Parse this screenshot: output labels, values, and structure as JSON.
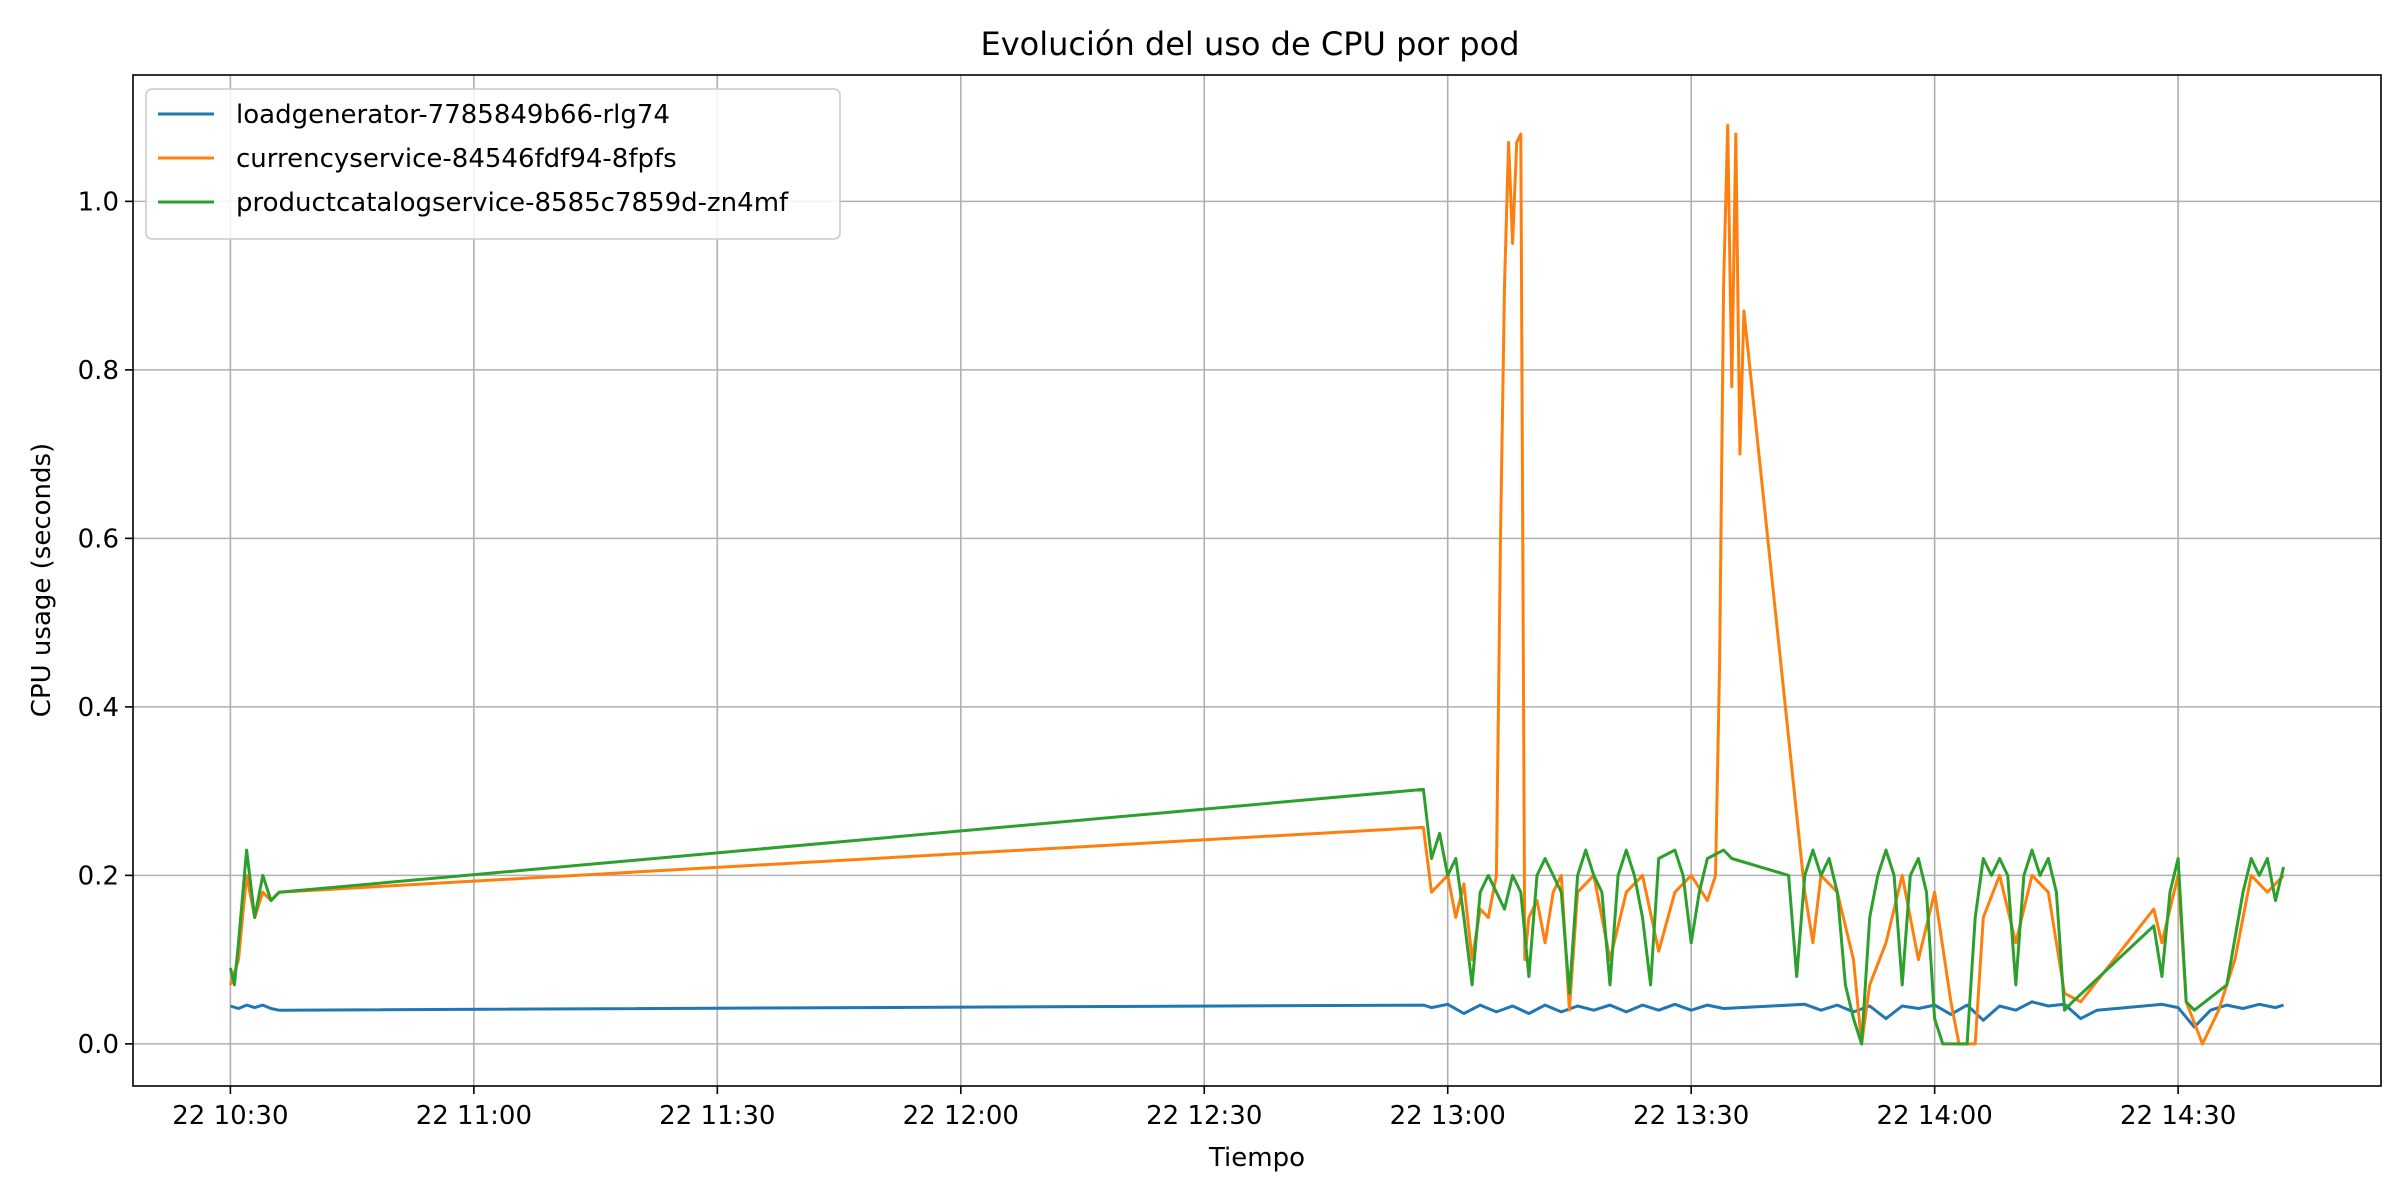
{
  "chart_data": {
    "type": "line",
    "title": "Evolución del uso de CPU por pod",
    "xlabel": "Tiempo",
    "ylabel": "CPU usage (seconds)",
    "x_tick_labels": [
      "22 10:30",
      "22 11:00",
      "22 11:30",
      "22 12:00",
      "22 12:30",
      "22 13:00",
      "22 13:30",
      "22 14:00",
      "22 14:30"
    ],
    "y_tick_labels": [
      "0.0",
      "0.2",
      "0.4",
      "0.6",
      "0.8",
      "1.0"
    ],
    "xlim": [
      "10:18",
      "14:55"
    ],
    "ylim": [
      -0.05,
      1.15
    ],
    "grid": true,
    "legend_position": "top-left",
    "series": [
      {
        "name": "loadgenerator-7785849b66-rlg74",
        "color": "#1f77b4",
        "points": [
          [
            "10:30",
            0.045
          ],
          [
            "10:31",
            0.042
          ],
          [
            "10:32",
            0.046
          ],
          [
            "10:33",
            0.043
          ],
          [
            "10:34",
            0.046
          ],
          [
            "10:35",
            0.042
          ],
          [
            "10:36",
            0.04
          ],
          [
            "12:57",
            0.046
          ],
          [
            "12:58",
            0.043
          ],
          [
            "13:00",
            0.047
          ],
          [
            "13:02",
            0.036
          ],
          [
            "13:04",
            0.046
          ],
          [
            "13:06",
            0.038
          ],
          [
            "13:08",
            0.045
          ],
          [
            "13:10",
            0.036
          ],
          [
            "13:12",
            0.046
          ],
          [
            "13:14",
            0.038
          ],
          [
            "13:16",
            0.045
          ],
          [
            "13:18",
            0.04
          ],
          [
            "13:20",
            0.046
          ],
          [
            "13:22",
            0.038
          ],
          [
            "13:24",
            0.046
          ],
          [
            "13:26",
            0.04
          ],
          [
            "13:28",
            0.047
          ],
          [
            "13:30",
            0.04
          ],
          [
            "13:32",
            0.046
          ],
          [
            "13:34",
            0.042
          ],
          [
            "13:44",
            0.047
          ],
          [
            "13:46",
            0.04
          ],
          [
            "13:48",
            0.046
          ],
          [
            "13:50",
            0.038
          ],
          [
            "13:52",
            0.045
          ],
          [
            "13:54",
            0.03
          ],
          [
            "13:56",
            0.045
          ],
          [
            "13:58",
            0.042
          ],
          [
            "14:00",
            0.046
          ],
          [
            "14:02",
            0.035
          ],
          [
            "14:04",
            0.046
          ],
          [
            "14:06",
            0.028
          ],
          [
            "14:08",
            0.045
          ],
          [
            "14:10",
            0.04
          ],
          [
            "14:12",
            0.05
          ],
          [
            "14:14",
            0.045
          ],
          [
            "14:16",
            0.047
          ],
          [
            "14:18",
            0.03
          ],
          [
            "14:20",
            0.04
          ],
          [
            "14:28",
            0.047
          ],
          [
            "14:30",
            0.043
          ],
          [
            "14:32",
            0.02
          ],
          [
            "14:34",
            0.04
          ],
          [
            "14:36",
            0.046
          ],
          [
            "14:38",
            0.042
          ],
          [
            "14:40",
            0.047
          ],
          [
            "14:42",
            0.043
          ],
          [
            "14:43",
            0.046
          ]
        ]
      },
      {
        "name": "currencyservice-84546fdf94-8fpfs",
        "color": "#ff7f0e",
        "points": [
          [
            "10:30",
            0.07
          ],
          [
            "10:31",
            0.1
          ],
          [
            "10:32",
            0.2
          ],
          [
            "10:33",
            0.15
          ],
          [
            "10:34",
            0.18
          ],
          [
            "10:35",
            0.17
          ],
          [
            "10:36",
            0.18
          ],
          [
            "12:57",
            0.257
          ],
          [
            "12:58",
            0.18
          ],
          [
            "13:00",
            0.2
          ],
          [
            "13:01",
            0.15
          ],
          [
            "13:02",
            0.19
          ],
          [
            "13:03",
            0.1
          ],
          [
            "13:04",
            0.16
          ],
          [
            "13:05",
            0.15
          ],
          [
            "13:06",
            0.2
          ],
          [
            "13:06.5",
            0.6
          ],
          [
            "13:07",
            0.9
          ],
          [
            "13:07.5",
            1.07
          ],
          [
            "13:08",
            0.95
          ],
          [
            "13:08.5",
            1.07
          ],
          [
            "13:09",
            1.08
          ],
          [
            "13:09.5",
            0.1
          ],
          [
            "13:10",
            0.15
          ],
          [
            "13:11",
            0.17
          ],
          [
            "13:12",
            0.12
          ],
          [
            "13:13",
            0.18
          ],
          [
            "13:14",
            0.2
          ],
          [
            "13:15",
            0.04
          ],
          [
            "13:16",
            0.18
          ],
          [
            "13:18",
            0.2
          ],
          [
            "13:20",
            0.1
          ],
          [
            "13:22",
            0.18
          ],
          [
            "13:24",
            0.2
          ],
          [
            "13:26",
            0.11
          ],
          [
            "13:28",
            0.18
          ],
          [
            "13:30",
            0.2
          ],
          [
            "13:32",
            0.17
          ],
          [
            "13:33",
            0.2
          ],
          [
            "13:33.5",
            0.45
          ],
          [
            "13:34",
            0.9
          ],
          [
            "13:34.5",
            1.09
          ],
          [
            "13:35",
            0.78
          ],
          [
            "13:35.5",
            1.08
          ],
          [
            "13:36",
            0.7
          ],
          [
            "13:36.5",
            0.87
          ],
          [
            "13:44",
            0.18
          ],
          [
            "13:45",
            0.12
          ],
          [
            "13:46",
            0.2
          ],
          [
            "13:48",
            0.18
          ],
          [
            "13:50",
            0.1
          ],
          [
            "13:51",
            0.0
          ],
          [
            "13:52",
            0.07
          ],
          [
            "13:54",
            0.12
          ],
          [
            "13:56",
            0.2
          ],
          [
            "13:58",
            0.1
          ],
          [
            "14:00",
            0.18
          ],
          [
            "14:02",
            0.05
          ],
          [
            "14:03",
            0.0
          ],
          [
            "14:05",
            0.0
          ],
          [
            "14:06",
            0.15
          ],
          [
            "14:08",
            0.2
          ],
          [
            "14:10",
            0.12
          ],
          [
            "14:12",
            0.2
          ],
          [
            "14:14",
            0.18
          ],
          [
            "14:16",
            0.06
          ],
          [
            "14:18",
            0.05
          ],
          [
            "14:27",
            0.16
          ],
          [
            "14:28",
            0.12
          ],
          [
            "14:30",
            0.2
          ],
          [
            "14:31",
            0.05
          ],
          [
            "14:33",
            0.0
          ],
          [
            "14:35",
            0.04
          ],
          [
            "14:37",
            0.1
          ],
          [
            "14:39",
            0.2
          ],
          [
            "14:41",
            0.18
          ],
          [
            "14:43",
            0.2
          ]
        ]
      },
      {
        "name": "productcatalogservice-8585c7859d-zn4mf",
        "color": "#2ca02c",
        "points": [
          [
            "10:30",
            0.09
          ],
          [
            "10:30.5",
            0.07
          ],
          [
            "10:31",
            0.12
          ],
          [
            "10:32",
            0.23
          ],
          [
            "10:33",
            0.15
          ],
          [
            "10:34",
            0.2
          ],
          [
            "10:35",
            0.17
          ],
          [
            "10:36",
            0.18
          ],
          [
            "12:57",
            0.302
          ],
          [
            "12:58",
            0.22
          ],
          [
            "12:59",
            0.25
          ],
          [
            "13:00",
            0.2
          ],
          [
            "13:01",
            0.22
          ],
          [
            "13:02",
            0.15
          ],
          [
            "13:03",
            0.07
          ],
          [
            "13:04",
            0.18
          ],
          [
            "13:05",
            0.2
          ],
          [
            "13:06",
            0.18
          ],
          [
            "13:07",
            0.16
          ],
          [
            "13:08",
            0.2
          ],
          [
            "13:09",
            0.18
          ],
          [
            "13:10",
            0.08
          ],
          [
            "13:11",
            0.2
          ],
          [
            "13:12",
            0.22
          ],
          [
            "13:13",
            0.2
          ],
          [
            "13:14",
            0.18
          ],
          [
            "13:15",
            0.06
          ],
          [
            "13:16",
            0.2
          ],
          [
            "13:17",
            0.23
          ],
          [
            "13:18",
            0.2
          ],
          [
            "13:19",
            0.18
          ],
          [
            "13:20",
            0.07
          ],
          [
            "13:21",
            0.2
          ],
          [
            "13:22",
            0.23
          ],
          [
            "13:23",
            0.2
          ],
          [
            "13:24",
            0.15
          ],
          [
            "13:25",
            0.07
          ],
          [
            "13:26",
            0.22
          ],
          [
            "13:28",
            0.23
          ],
          [
            "13:29",
            0.2
          ],
          [
            "13:30",
            0.12
          ],
          [
            "13:31",
            0.18
          ],
          [
            "13:32",
            0.22
          ],
          [
            "13:34",
            0.23
          ],
          [
            "13:35",
            0.22
          ],
          [
            "13:42",
            0.2
          ],
          [
            "13:43",
            0.08
          ],
          [
            "13:44",
            0.2
          ],
          [
            "13:45",
            0.23
          ],
          [
            "13:46",
            0.2
          ],
          [
            "13:47",
            0.22
          ],
          [
            "13:48",
            0.18
          ],
          [
            "13:49",
            0.07
          ],
          [
            "13:50",
            0.03
          ],
          [
            "13:51",
            0.0
          ],
          [
            "13:52",
            0.15
          ],
          [
            "13:53",
            0.2
          ],
          [
            "13:54",
            0.23
          ],
          [
            "13:55",
            0.2
          ],
          [
            "13:56",
            0.07
          ],
          [
            "13:57",
            0.2
          ],
          [
            "13:58",
            0.22
          ],
          [
            "13:59",
            0.18
          ],
          [
            "14:00",
            0.03
          ],
          [
            "14:01",
            0.0
          ],
          [
            "14:04",
            0.0
          ],
          [
            "14:05",
            0.15
          ],
          [
            "14:06",
            0.22
          ],
          [
            "14:07",
            0.2
          ],
          [
            "14:08",
            0.22
          ],
          [
            "14:09",
            0.2
          ],
          [
            "14:10",
            0.07
          ],
          [
            "14:11",
            0.2
          ],
          [
            "14:12",
            0.23
          ],
          [
            "14:13",
            0.2
          ],
          [
            "14:14",
            0.22
          ],
          [
            "14:15",
            0.18
          ],
          [
            "14:16",
            0.04
          ],
          [
            "14:17",
            0.05
          ],
          [
            "14:27",
            0.14
          ],
          [
            "14:28",
            0.08
          ],
          [
            "14:29",
            0.18
          ],
          [
            "14:30",
            0.22
          ],
          [
            "14:31",
            0.05
          ],
          [
            "14:32",
            0.04
          ],
          [
            "14:36",
            0.07
          ],
          [
            "14:38",
            0.18
          ],
          [
            "14:39",
            0.22
          ],
          [
            "14:40",
            0.2
          ],
          [
            "14:41",
            0.22
          ],
          [
            "14:42",
            0.17
          ],
          [
            "14:43",
            0.21
          ]
        ]
      }
    ]
  }
}
